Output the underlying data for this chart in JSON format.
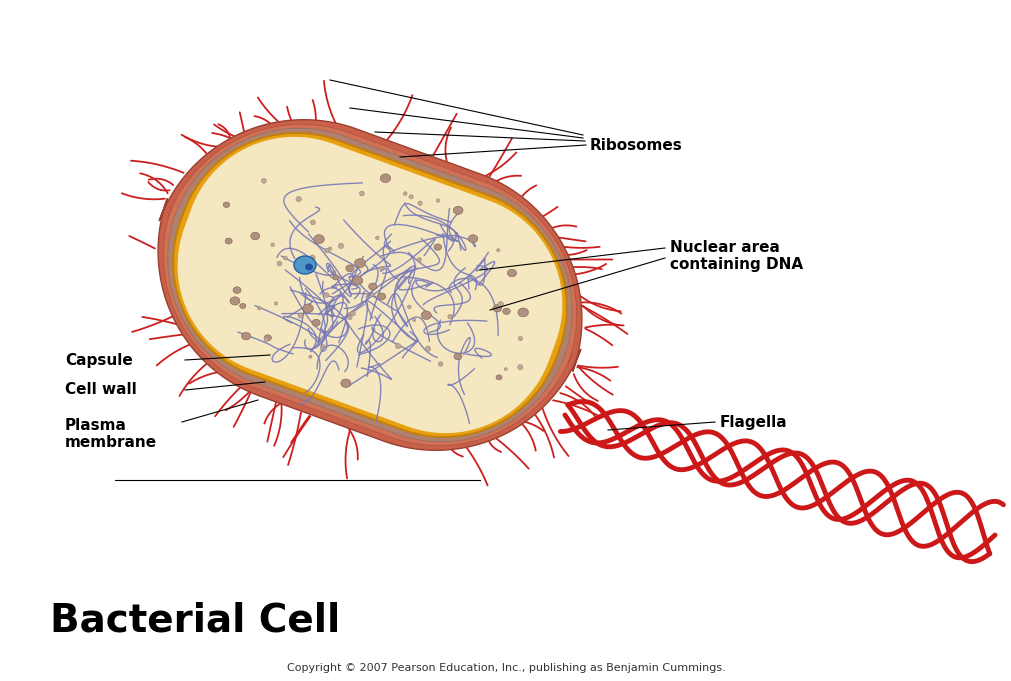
{
  "title": "Bacterial Cell",
  "copyright": "Copyright © 2007 Pearson Education, Inc., publishing as Benjamin Cummings.",
  "labels": {
    "ribosomes": "Ribosomes",
    "nuclear_area": "Nuclear area\ncontaining DNA",
    "capsule": "Capsule",
    "cell_wall": "Cell wall",
    "plasma_membrane": "Plasma\nmembrane",
    "flagella": "Flagella"
  },
  "colors": {
    "background": "#ffffff",
    "capsule_outer": "#c8604a",
    "capsule_mid": "#d4745a",
    "cell_wall": "#a87868",
    "plasma_membrane": "#e8a010",
    "cytoplasm": "#f5e8c0",
    "dna_color": "#7878b8",
    "ribosome_large": "#b09080",
    "ribosome_small": "#c8a898",
    "flagella_color": "#cc1818",
    "pili_color": "#cc2020",
    "blue_dot": "#5098c8",
    "title_color": "#000000",
    "label_color": "#000000",
    "line_color": "#000000",
    "cross_section": "#8b6050"
  }
}
